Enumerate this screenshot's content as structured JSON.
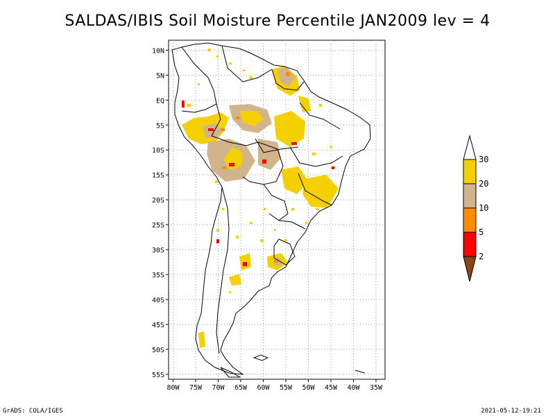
{
  "title": "SALDAS/IBIS Soil Moisture Percentile JAN2009 lev = 4",
  "map": {
    "lat_labels": [
      "10N",
      "5N",
      "EQ",
      "5S",
      "10S",
      "15S",
      "20S",
      "25S",
      "30S",
      "35S",
      "40S",
      "45S",
      "50S",
      "55S"
    ],
    "lat_values": [
      10,
      5,
      0,
      -5,
      -10,
      -15,
      -20,
      -25,
      -30,
      -35,
      -40,
      -45,
      -50,
      -55
    ],
    "lon_labels": [
      "80W",
      "75W",
      "70W",
      "65W",
      "60W",
      "55W",
      "50W",
      "45W",
      "40W",
      "35W"
    ],
    "lon_values": [
      -80,
      -75,
      -70,
      -65,
      -60,
      -55,
      -50,
      -45,
      -40,
      -35
    ],
    "lon_range": [
      -81,
      -33
    ],
    "lat_range": [
      -56,
      12
    ],
    "grid": true
  },
  "legend": {
    "labels": [
      "30",
      "20",
      "10",
      "5",
      "2"
    ],
    "colors": {
      "gt30": "#ffffff",
      "b20_30": "#f5d000",
      "b10_20": "#d2b48c",
      "b5_10": "#ff8c00",
      "b2_5": "#ff0000",
      "lt2": "#8b4513"
    }
  },
  "footer": {
    "left": "GrADS: COLA/IGES",
    "right": "2021-05-12-19:21"
  }
}
